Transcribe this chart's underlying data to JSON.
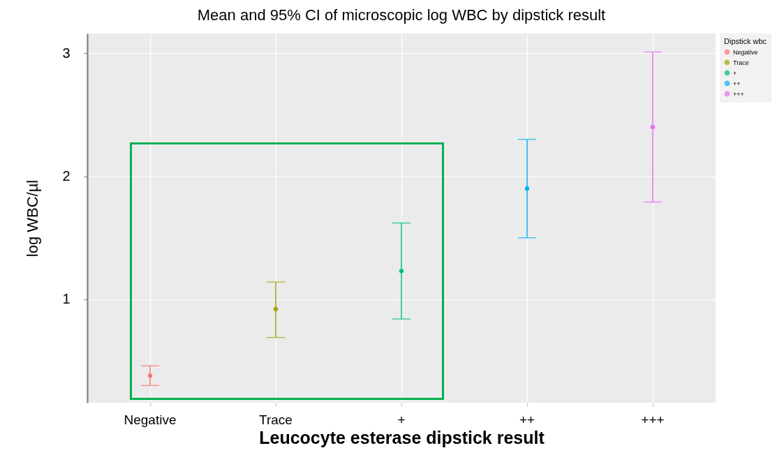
{
  "chart_data": {
    "type": "scatter",
    "title": "Mean and 95% CI of microscopic log WBC by dipstick result",
    "xlabel": "Leucocyte esterase dipstick result",
    "ylabel": "log WBC/µl",
    "legend_title": "Dipstick wbc",
    "categories": [
      "Negative",
      "Trace",
      "+",
      "++",
      "+++"
    ],
    "series": [
      {
        "name": "Negative",
        "color": "#f8766d",
        "values": [
          0.38,
          null,
          null,
          null,
          null
        ],
        "errors": [
          [
            0.3,
            0.46
          ],
          null,
          null,
          null,
          null
        ]
      },
      {
        "name": "Trace",
        "color": "#a3a500",
        "values": [
          null,
          0.92,
          null,
          null,
          null
        ],
        "errors": [
          null,
          [
            0.69,
            1.14
          ],
          null,
          null,
          null
        ]
      },
      {
        "name": "+",
        "color": "#00bf7d",
        "values": [
          null,
          null,
          1.23,
          null,
          null
        ],
        "errors": [
          null,
          null,
          [
            0.84,
            1.62
          ],
          null,
          null
        ]
      },
      {
        "name": "++",
        "color": "#00b0f6",
        "values": [
          null,
          null,
          null,
          1.9,
          null
        ],
        "errors": [
          null,
          null,
          null,
          [
            1.5,
            2.3
          ],
          null
        ]
      },
      {
        "name": "+++",
        "color": "#e76bf3",
        "values": [
          null,
          null,
          null,
          null,
          2.4
        ],
        "errors": [
          null,
          null,
          null,
          null,
          [
            1.79,
            3.01
          ]
        ]
      }
    ],
    "ylim": [
      0.16,
      3.16
    ],
    "yticks": [
      1,
      2,
      3
    ],
    "grid": true,
    "legend": "right",
    "marker": "circle"
  }
}
